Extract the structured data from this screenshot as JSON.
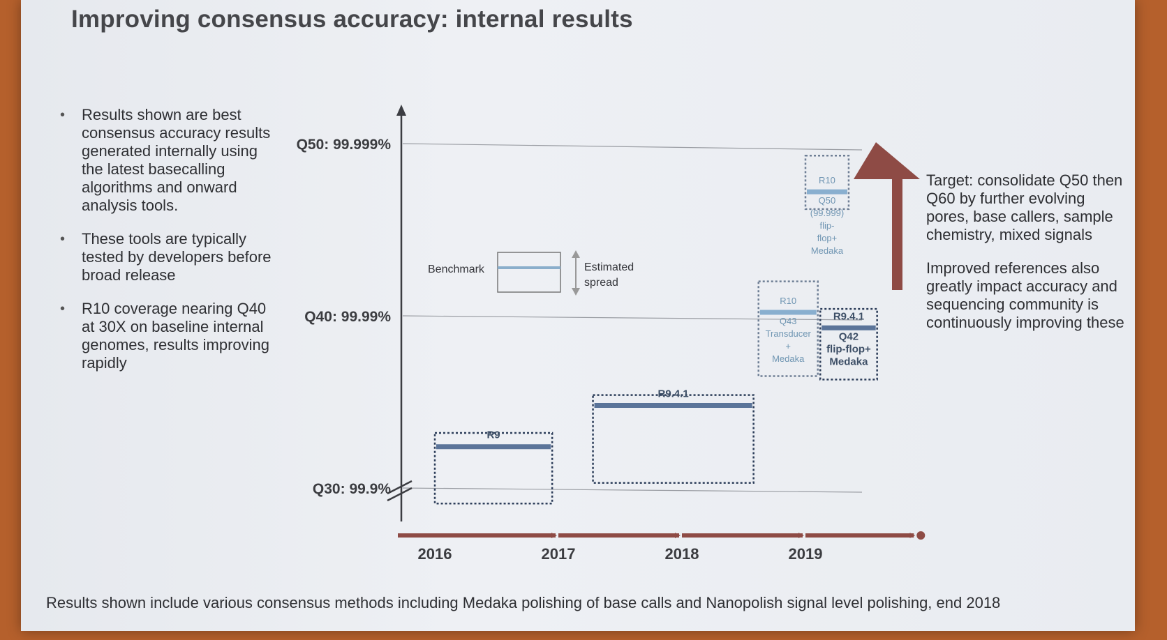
{
  "title": "Improving consensus accuracy: internal results",
  "bullets": [
    "Results shown are best consensus accuracy results generated internally using the latest basecalling algorithms and onward analysis tools.",
    "These tools are typically tested by developers before broad release",
    "R10 coverage nearing Q40 at 30X on baseline internal genomes, results improving rapidly"
  ],
  "right_notes": [
    "Target: consolidate Q50 then Q60 by further evolving pores, base callers, sample chemistry, mixed signals",
    "Improved references also greatly impact accuracy and sequencing community is continuously improving these"
  ],
  "footer": "Results shown include various consensus methods including Medaka polishing of base calls and Nanopolish signal level polishing, end 2018",
  "chart_data": {
    "type": "bar",
    "x_axis": {
      "ticks": [
        "2016",
        "2017",
        "2018",
        "2019"
      ],
      "range": [
        2016,
        2019.8
      ]
    },
    "y_axis": {
      "ticks": [
        {
          "q": 30,
          "label": "Q30: 99.9%"
        },
        {
          "q": 40,
          "label": "Q40: 99.99%"
        },
        {
          "q": 50,
          "label": "Q50: 99.999%"
        }
      ],
      "range": [
        29,
        50.7
      ],
      "axis_break": true
    },
    "legend": {
      "benchmark_label": "Benchmark",
      "spread_label_1": "Estimated",
      "spread_label_2": "spread"
    },
    "series": [
      {
        "name": "R9",
        "x_start": 2016.0,
        "x_end": 2016.95,
        "benchmark_q": 32.4,
        "spread": [
          29.1,
          33.2
        ],
        "labels": [],
        "style": "dark"
      },
      {
        "name": "R9.4.1",
        "x_start": 2017.28,
        "x_end": 2018.58,
        "benchmark_q": 34.8,
        "spread": [
          30.3,
          35.4
        ],
        "labels": [],
        "style": "dark"
      },
      {
        "name": "R10",
        "x_start": 2018.62,
        "x_end": 2019.1,
        "benchmark_q": 40.2,
        "spread": [
          36.5,
          42.0
        ],
        "labels": [
          "Q43",
          "Transducer",
          "+",
          "Medaka"
        ],
        "style": "light"
      },
      {
        "name": "R9.4.1",
        "x_start": 2019.12,
        "x_end": 2019.58,
        "benchmark_q": 39.3,
        "spread": [
          36.3,
          40.4
        ],
        "labels": [
          "Q42",
          "flip-flop+",
          "Medaka"
        ],
        "style": "dark"
      },
      {
        "name": "R10",
        "x_start": 2019.0,
        "x_end": 2019.35,
        "benchmark_q": 47.2,
        "spread": [
          46.2,
          49.3
        ],
        "labels": [
          "Q50",
          "(99.999)",
          "flip-",
          "flop+",
          "Medaka"
        ],
        "style": "light"
      }
    ]
  },
  "colors": {
    "arrow": "#8e4b45",
    "timeline": "#8e4b45",
    "bar_dark": "#5b7499",
    "bar_light": "#89afcf",
    "axis": "#3c3d42"
  }
}
